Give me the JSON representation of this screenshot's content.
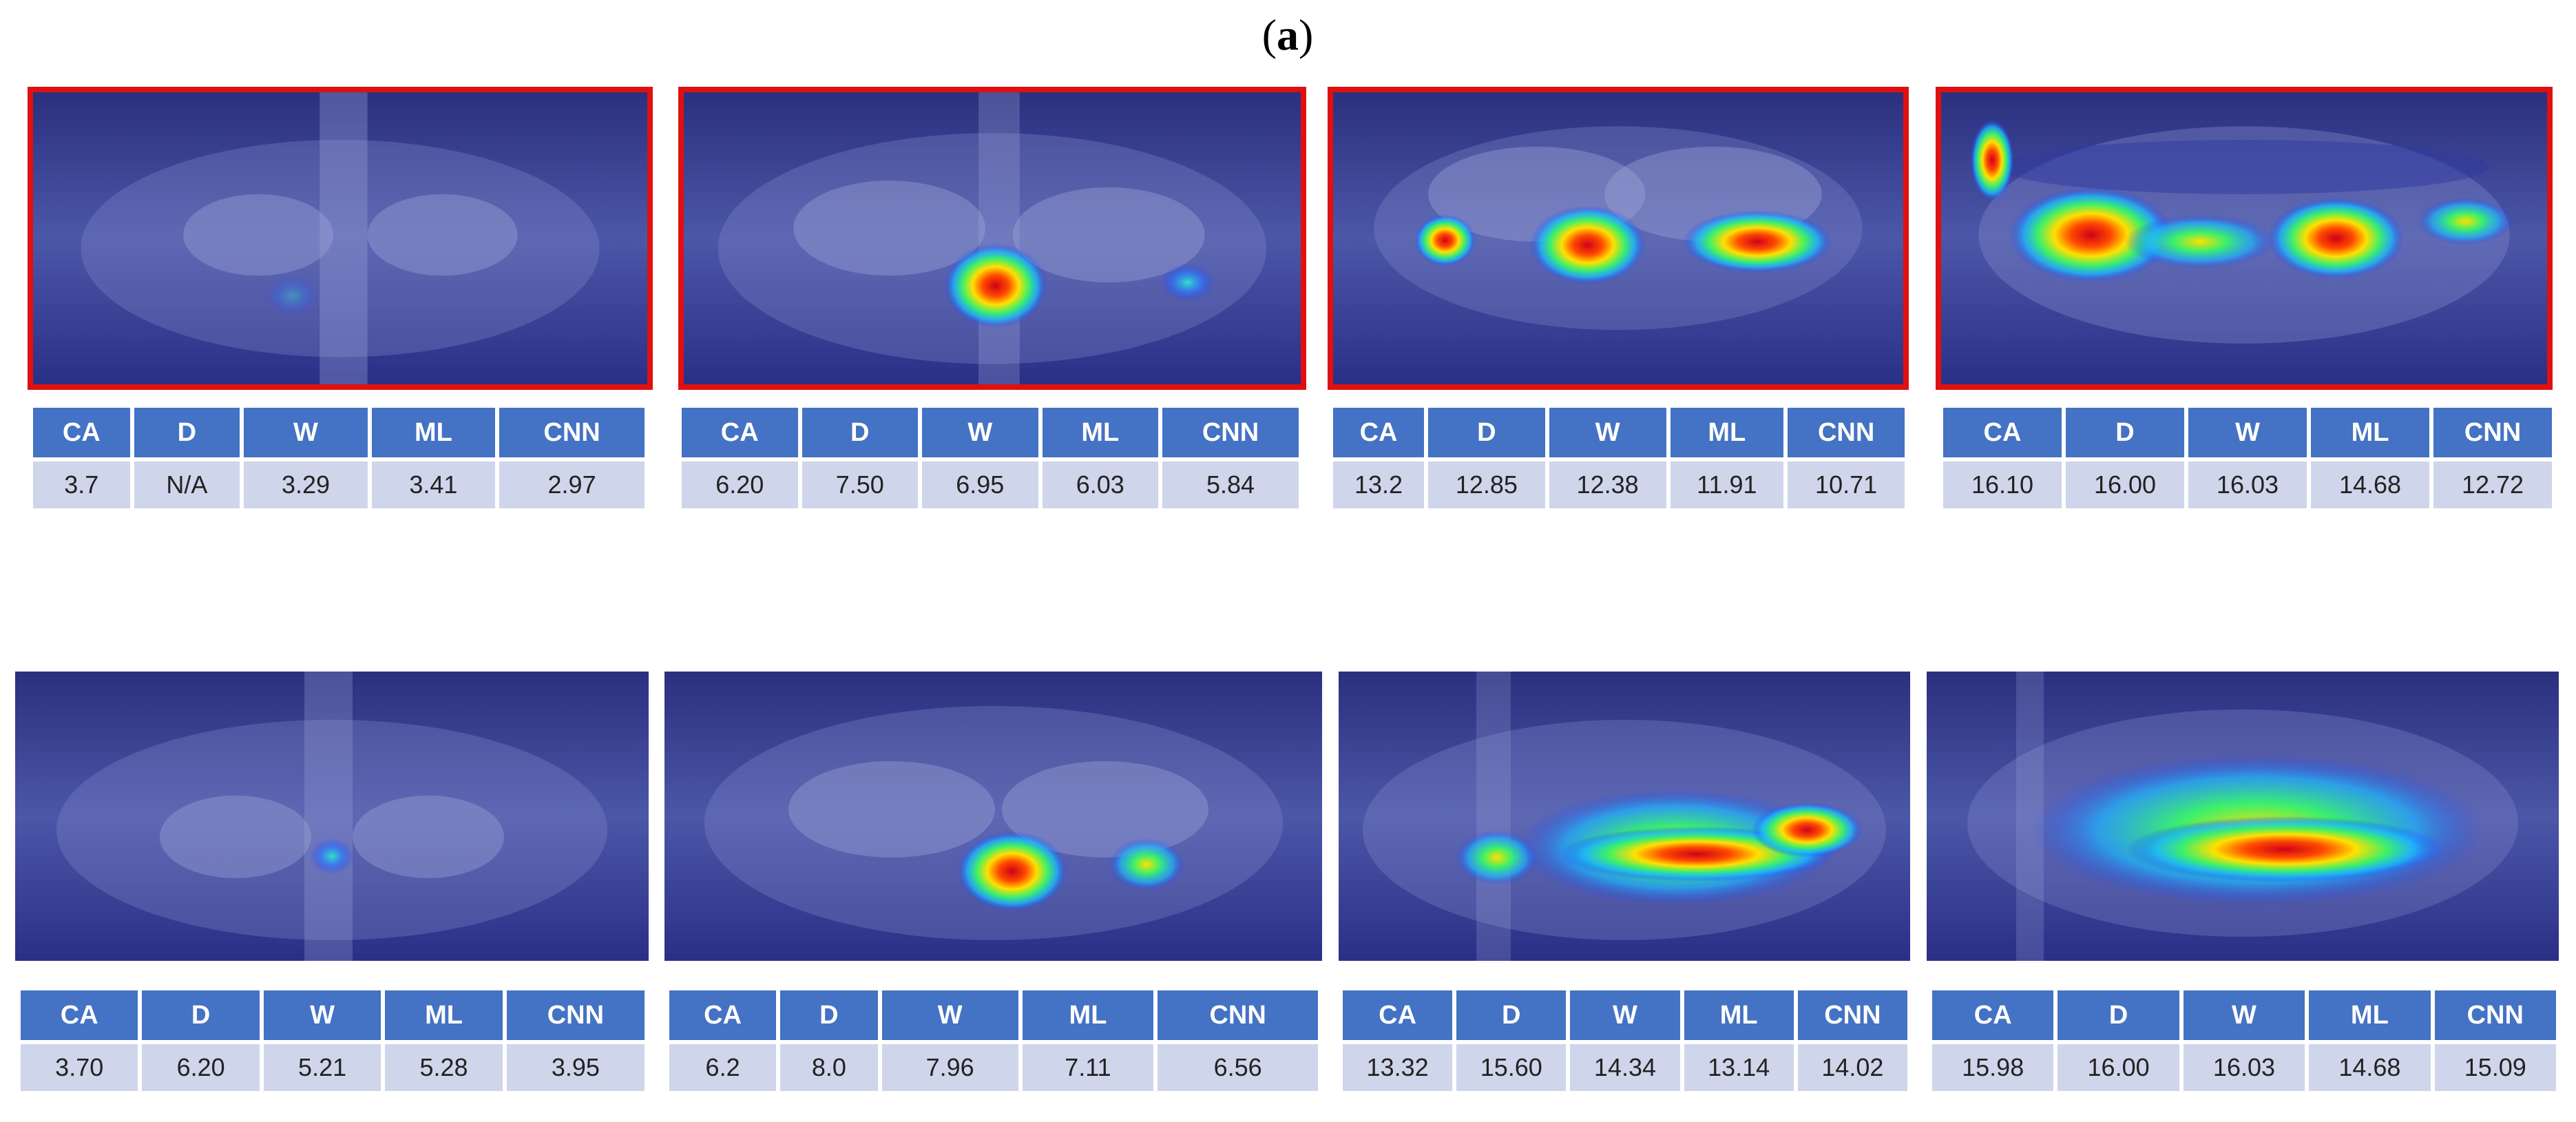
{
  "caption": {
    "open": "(",
    "label": "a",
    "close": ")"
  },
  "headers": [
    "CA",
    "D",
    "W",
    "ML",
    "CNN"
  ],
  "rows": [
    {
      "framed": true,
      "panels": [
        {
          "values": [
            "3.7",
            "N/A",
            "3.29",
            "3.41",
            "2.97"
          ]
        },
        {
          "values": [
            "6.20",
            "7.50",
            "6.95",
            "6.03",
            "5.84"
          ]
        },
        {
          "values": [
            "13.2",
            "12.85",
            "12.38",
            "11.91",
            "10.71"
          ]
        },
        {
          "values": [
            "16.10",
            "16.00",
            "16.03",
            "14.68",
            "12.72"
          ]
        }
      ]
    },
    {
      "framed": false,
      "panels": [
        {
          "values": [
            "3.70",
            "6.20",
            "5.21",
            "5.28",
            "3.95"
          ]
        },
        {
          "values": [
            "6.2",
            "8.0",
            "7.96",
            "7.11",
            "6.56"
          ]
        },
        {
          "values": [
            "13.32",
            "15.60",
            "14.34",
            "13.14",
            "14.02"
          ]
        },
        {
          "values": [
            "15.98",
            "16.00",
            "16.03",
            "14.68",
            "15.09"
          ]
        }
      ]
    }
  ],
  "colors": {
    "frame": "#e01010",
    "header": "#4472c4",
    "cell": "#cfd5ea",
    "xray_base": "#2a2f86"
  }
}
